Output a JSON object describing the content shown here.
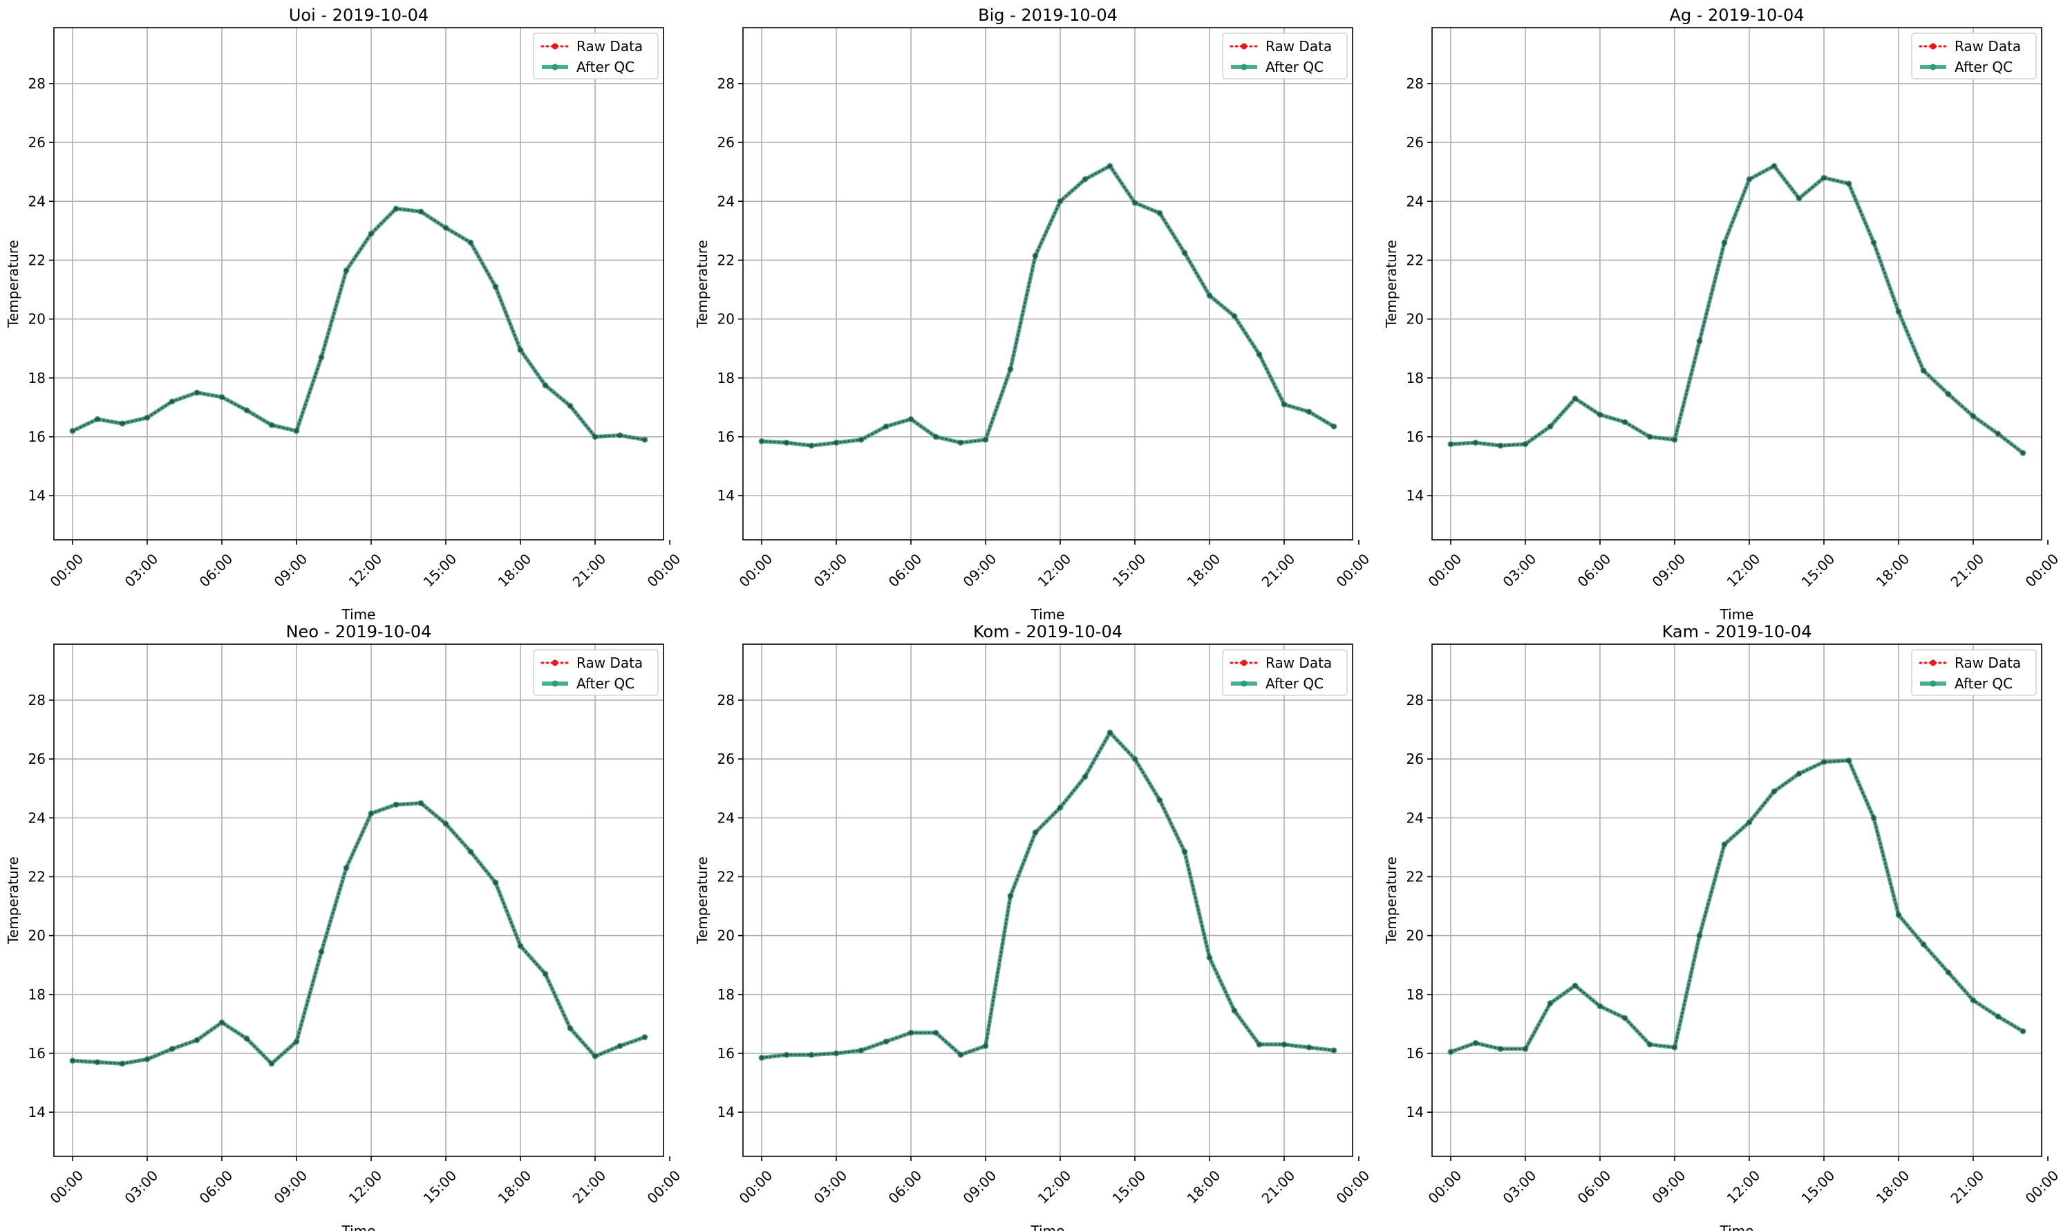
{
  "figure": {
    "background": "#ffffff"
  },
  "chart_data": [
    {
      "type": "line",
      "title": "Uoi - 2019-10-04",
      "xlabel": "Time",
      "ylabel": "Temperature",
      "ylim": [
        12.5,
        29.9
      ],
      "yticks": [
        14,
        16,
        18,
        20,
        22,
        24,
        26,
        28
      ],
      "xlim": [
        -0.75,
        23.75
      ],
      "xticks": [
        0,
        3,
        6,
        9,
        12,
        15,
        18,
        21,
        24
      ],
      "xtick_labels": [
        "00:00",
        "03:00",
        "06:00",
        "09:00",
        "12:00",
        "15:00",
        "18:00",
        "21:00",
        "00:00"
      ],
      "grid": true,
      "legend": "top-right",
      "x": [
        0,
        1,
        2,
        3,
        4,
        5,
        6,
        7,
        8,
        9,
        10,
        11,
        12,
        13,
        14,
        15,
        16,
        17,
        18,
        19,
        20,
        21,
        22,
        23
      ],
      "series": [
        {
          "name": "Raw Data",
          "color": "#e41a1c",
          "style": "dotted",
          "values": [
            16.2,
            16.6,
            16.45,
            16.65,
            17.2,
            17.5,
            17.35,
            16.9,
            16.4,
            16.2,
            18.7,
            21.65,
            22.9,
            23.75,
            23.65,
            23.1,
            22.6,
            21.1,
            18.95,
            17.75,
            17.05,
            16.0,
            16.05,
            15.9
          ]
        },
        {
          "name": "After QC",
          "color": "#2a9d7e",
          "style": "solid",
          "values": [
            16.2,
            16.6,
            16.45,
            16.65,
            17.2,
            17.5,
            17.35,
            16.9,
            16.4,
            16.2,
            18.7,
            21.65,
            22.9,
            23.75,
            23.65,
            23.1,
            22.6,
            21.1,
            18.95,
            17.75,
            17.05,
            16.0,
            16.05,
            15.9
          ]
        }
      ]
    },
    {
      "type": "line",
      "title": "Big - 2019-10-04",
      "xlabel": "Time",
      "ylabel": "Temperature",
      "ylim": [
        12.5,
        29.9
      ],
      "yticks": [
        14,
        16,
        18,
        20,
        22,
        24,
        26,
        28
      ],
      "xlim": [
        -0.75,
        23.75
      ],
      "xticks": [
        0,
        3,
        6,
        9,
        12,
        15,
        18,
        21,
        24
      ],
      "xtick_labels": [
        "00:00",
        "03:00",
        "06:00",
        "09:00",
        "12:00",
        "15:00",
        "18:00",
        "21:00",
        "00:00"
      ],
      "grid": true,
      "legend": "top-right",
      "x": [
        0,
        1,
        2,
        3,
        4,
        5,
        6,
        7,
        8,
        9,
        10,
        11,
        12,
        13,
        14,
        15,
        16,
        17,
        18,
        19,
        20,
        21,
        22,
        23
      ],
      "series": [
        {
          "name": "Raw Data",
          "color": "#e41a1c",
          "style": "dotted",
          "values": [
            15.85,
            15.8,
            15.7,
            15.8,
            15.9,
            16.35,
            16.6,
            16.0,
            15.8,
            15.9,
            18.3,
            22.15,
            24.0,
            24.75,
            25.2,
            23.95,
            23.6,
            22.25,
            20.8,
            20.1,
            18.8,
            17.1,
            16.85,
            16.35
          ]
        },
        {
          "name": "After QC",
          "color": "#2a9d7e",
          "style": "solid",
          "values": [
            15.85,
            15.8,
            15.7,
            15.8,
            15.9,
            16.35,
            16.6,
            16.0,
            15.8,
            15.9,
            18.3,
            22.15,
            24.0,
            24.75,
            25.2,
            23.95,
            23.6,
            22.25,
            20.8,
            20.1,
            18.8,
            17.1,
            16.85,
            16.35
          ]
        }
      ]
    },
    {
      "type": "line",
      "title": "Ag - 2019-10-04",
      "xlabel": "Time",
      "ylabel": "Temperature",
      "ylim": [
        12.5,
        29.9
      ],
      "yticks": [
        14,
        16,
        18,
        20,
        22,
        24,
        26,
        28
      ],
      "xlim": [
        -0.75,
        23.75
      ],
      "xticks": [
        0,
        3,
        6,
        9,
        12,
        15,
        18,
        21,
        24
      ],
      "xtick_labels": [
        "00:00",
        "03:00",
        "06:00",
        "09:00",
        "12:00",
        "15:00",
        "18:00",
        "21:00",
        "00:00"
      ],
      "grid": true,
      "legend": "top-right",
      "x": [
        0,
        1,
        2,
        3,
        4,
        5,
        6,
        7,
        8,
        9,
        10,
        11,
        12,
        13,
        14,
        15,
        16,
        17,
        18,
        19,
        20,
        21,
        22,
        23
      ],
      "series": [
        {
          "name": "Raw Data",
          "color": "#e41a1c",
          "style": "dotted",
          "values": [
            15.75,
            15.8,
            15.7,
            15.75,
            16.35,
            17.3,
            16.75,
            16.5,
            16.0,
            15.9,
            19.25,
            22.6,
            24.75,
            25.2,
            24.1,
            24.8,
            24.6,
            22.6,
            20.25,
            18.25,
            17.45,
            16.7,
            16.1,
            15.45
          ]
        },
        {
          "name": "After QC",
          "color": "#2a9d7e",
          "style": "solid",
          "values": [
            15.75,
            15.8,
            15.7,
            15.75,
            16.35,
            17.3,
            16.75,
            16.5,
            16.0,
            15.9,
            19.25,
            22.6,
            24.75,
            25.2,
            24.1,
            24.8,
            24.6,
            22.6,
            20.25,
            18.25,
            17.45,
            16.7,
            16.1,
            15.45
          ]
        }
      ]
    },
    {
      "type": "line",
      "title": "Neo - 2019-10-04",
      "xlabel": "Time",
      "ylabel": "Temperature",
      "ylim": [
        12.5,
        29.9
      ],
      "yticks": [
        14,
        16,
        18,
        20,
        22,
        24,
        26,
        28
      ],
      "xlim": [
        -0.75,
        23.75
      ],
      "xticks": [
        0,
        3,
        6,
        9,
        12,
        15,
        18,
        21,
        24
      ],
      "xtick_labels": [
        "00:00",
        "03:00",
        "06:00",
        "09:00",
        "12:00",
        "15:00",
        "18:00",
        "21:00",
        "00:00"
      ],
      "grid": true,
      "legend": "top-right",
      "x": [
        0,
        1,
        2,
        3,
        4,
        5,
        6,
        7,
        8,
        9,
        10,
        11,
        12,
        13,
        14,
        15,
        16,
        17,
        18,
        19,
        20,
        21,
        22,
        23
      ],
      "series": [
        {
          "name": "Raw Data",
          "color": "#e41a1c",
          "style": "dotted",
          "values": [
            15.75,
            15.7,
            15.65,
            15.8,
            16.15,
            16.45,
            17.05,
            16.5,
            15.65,
            16.4,
            19.45,
            22.3,
            24.15,
            24.45,
            24.5,
            23.8,
            22.85,
            21.8,
            19.65,
            18.7,
            16.85,
            15.9,
            16.25,
            16.55
          ]
        },
        {
          "name": "After QC",
          "color": "#2a9d7e",
          "style": "solid",
          "values": [
            15.75,
            15.7,
            15.65,
            15.8,
            16.15,
            16.45,
            17.05,
            16.5,
            15.65,
            16.4,
            19.45,
            22.3,
            24.15,
            24.45,
            24.5,
            23.8,
            22.85,
            21.8,
            19.65,
            18.7,
            16.85,
            15.9,
            16.25,
            16.55
          ]
        }
      ]
    },
    {
      "type": "line",
      "title": "Kom - 2019-10-04",
      "xlabel": "Time",
      "ylabel": "Temperature",
      "ylim": [
        12.5,
        29.9
      ],
      "yticks": [
        14,
        16,
        18,
        20,
        22,
        24,
        26,
        28
      ],
      "xlim": [
        -0.75,
        23.75
      ],
      "xticks": [
        0,
        3,
        6,
        9,
        12,
        15,
        18,
        21,
        24
      ],
      "xtick_labels": [
        "00:00",
        "03:00",
        "06:00",
        "09:00",
        "12:00",
        "15:00",
        "18:00",
        "21:00",
        "00:00"
      ],
      "grid": true,
      "legend": "top-right",
      "x": [
        0,
        1,
        2,
        3,
        4,
        5,
        6,
        7,
        8,
        9,
        10,
        11,
        12,
        13,
        14,
        15,
        16,
        17,
        18,
        19,
        20,
        21,
        22,
        23
      ],
      "series": [
        {
          "name": "Raw Data",
          "color": "#e41a1c",
          "style": "dotted",
          "values": [
            15.85,
            15.95,
            15.95,
            16.0,
            16.1,
            16.4,
            16.7,
            16.7,
            15.95,
            16.25,
            21.35,
            23.5,
            24.35,
            25.4,
            26.9,
            26.0,
            24.6,
            22.85,
            19.25,
            17.45,
            16.3,
            16.3,
            16.2,
            16.1
          ]
        },
        {
          "name": "After QC",
          "color": "#2a9d7e",
          "style": "solid",
          "values": [
            15.85,
            15.95,
            15.95,
            16.0,
            16.1,
            16.4,
            16.7,
            16.7,
            15.95,
            16.25,
            21.35,
            23.5,
            24.35,
            25.4,
            26.9,
            26.0,
            24.6,
            22.85,
            19.25,
            17.45,
            16.3,
            16.3,
            16.2,
            16.1
          ]
        }
      ]
    },
    {
      "type": "line",
      "title": "Kam - 2019-10-04",
      "xlabel": "Time",
      "ylabel": "Temperature",
      "ylim": [
        12.5,
        29.9
      ],
      "yticks": [
        14,
        16,
        18,
        20,
        22,
        24,
        26,
        28
      ],
      "xlim": [
        -0.75,
        23.75
      ],
      "xticks": [
        0,
        3,
        6,
        9,
        12,
        15,
        18,
        21,
        24
      ],
      "xtick_labels": [
        "00:00",
        "03:00",
        "06:00",
        "09:00",
        "12:00",
        "15:00",
        "18:00",
        "21:00",
        "00:00"
      ],
      "grid": true,
      "legend": "top-right",
      "x": [
        0,
        1,
        2,
        3,
        4,
        5,
        6,
        7,
        8,
        9,
        10,
        11,
        12,
        13,
        14,
        15,
        16,
        17,
        18,
        19,
        20,
        21,
        22,
        23
      ],
      "series": [
        {
          "name": "Raw Data",
          "color": "#e41a1c",
          "style": "dotted",
          "values": [
            16.05,
            16.35,
            16.15,
            16.15,
            17.7,
            18.3,
            17.6,
            17.2,
            16.3,
            16.2,
            20.0,
            23.1,
            23.85,
            24.9,
            25.5,
            25.9,
            25.95,
            24.0,
            20.7,
            19.7,
            18.75,
            17.8,
            17.25,
            16.75
          ]
        },
        {
          "name": "After QC",
          "color": "#2a9d7e",
          "style": "solid",
          "values": [
            16.05,
            16.35,
            16.15,
            16.15,
            17.7,
            18.3,
            17.6,
            17.2,
            16.3,
            16.2,
            20.0,
            23.1,
            23.85,
            24.9,
            25.5,
            25.9,
            25.95,
            24.0,
            20.7,
            19.7,
            18.75,
            17.8,
            17.25,
            16.75
          ]
        }
      ]
    }
  ]
}
